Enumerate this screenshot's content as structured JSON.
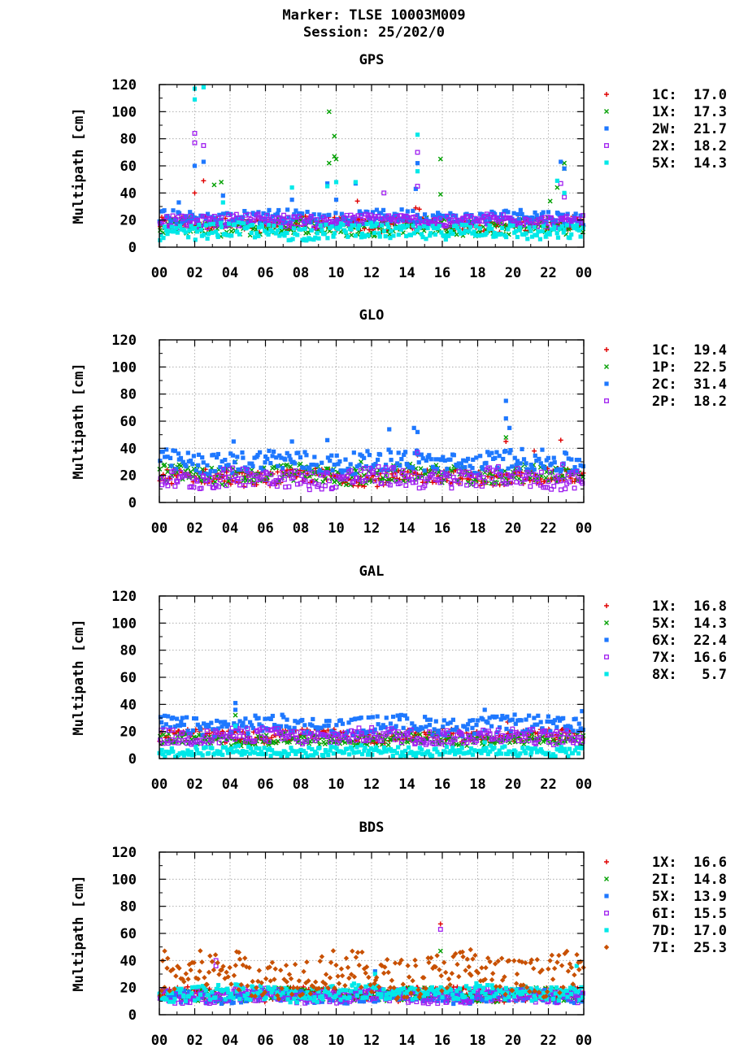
{
  "page": {
    "title_line1": "Marker: TLSE 10003M009",
    "title_line2": "Session: 25/202/0"
  },
  "colors": {
    "1C": "#e00000",
    "1X": "#e00000",
    "1P": "#00a000",
    "2X_gps_green": "#00a000",
    "red": "#e00000",
    "green": "#00a000",
    "blue": "#1e78ff",
    "purple": "#a020f0",
    "cyan": "#00e8e8",
    "brown": "#c85000"
  },
  "chart_data": [
    {
      "type": "scatter",
      "title": "GPS",
      "ylabel": "Multipath [cm]",
      "xlabel": "",
      "xlim": [
        0,
        24
      ],
      "ylim": [
        0,
        120
      ],
      "x_ticks": [
        "00",
        "02",
        "04",
        "06",
        "08",
        "10",
        "12",
        "14",
        "16",
        "18",
        "20",
        "22",
        "00"
      ],
      "y_ticks": [
        "0",
        "20",
        "40",
        "60",
        "80",
        "100",
        "120"
      ],
      "grid": true,
      "legend_position": "right",
      "series": [
        {
          "name": "1C",
          "rms": "17.0",
          "color": "#e00000",
          "marker": "plus",
          "band": [
            12,
            22
          ],
          "spikes": [
            [
              2.0,
              40
            ],
            [
              2.5,
              49
            ],
            [
              11.2,
              34
            ],
            [
              14.5,
              29
            ],
            [
              14.7,
              28
            ]
          ]
        },
        {
          "name": "1X",
          "rms": "17.3",
          "color": "#00a000",
          "marker": "cross",
          "band": [
            9,
            21
          ],
          "spikes": [
            [
              3.1,
              46
            ],
            [
              3.5,
              48
            ],
            [
              9.6,
              100
            ],
            [
              9.6,
              62
            ],
            [
              9.9,
              82
            ],
            [
              9.9,
              67
            ],
            [
              10.0,
              65
            ],
            [
              15.9,
              65
            ],
            [
              15.9,
              39
            ],
            [
              22.1,
              34
            ],
            [
              22.5,
              44
            ],
            [
              22.9,
              62
            ],
            [
              22.9,
              58
            ]
          ]
        },
        {
          "name": "2W",
          "rms": "21.7",
          "color": "#1e78ff",
          "marker": "square",
          "band": [
            17,
            27
          ],
          "spikes": [
            [
              1.1,
              33
            ],
            [
              2.0,
              60
            ],
            [
              2.5,
              63
            ],
            [
              3.6,
              38
            ],
            [
              7.5,
              35
            ],
            [
              9.5,
              47
            ],
            [
              10.0,
              35
            ],
            [
              11.1,
              47
            ],
            [
              14.5,
              43
            ],
            [
              14.6,
              62
            ],
            [
              22.7,
              63
            ],
            [
              22.9,
              58
            ]
          ]
        },
        {
          "name": "2X",
          "rms": "18.2",
          "color": "#a020f0",
          "marker": "opensquare",
          "band": [
            15,
            24
          ],
          "spikes": [
            [
              2.0,
              84
            ],
            [
              2.0,
              77
            ],
            [
              2.5,
              75
            ],
            [
              12.7,
              40
            ],
            [
              14.6,
              70
            ],
            [
              14.6,
              45
            ],
            [
              22.7,
              47
            ],
            [
              22.9,
              37
            ]
          ]
        },
        {
          "name": "5X",
          "rms": "14.3",
          "color": "#00e8e8",
          "marker": "square",
          "band": [
            6,
            17
          ],
          "spikes": [
            [
              2.0,
              117
            ],
            [
              2.0,
              109
            ],
            [
              2.5,
              118
            ],
            [
              3.6,
              33
            ],
            [
              7.5,
              44
            ],
            [
              9.5,
              45
            ],
            [
              10.0,
              48
            ],
            [
              11.1,
              48
            ],
            [
              14.6,
              83
            ],
            [
              14.6,
              56
            ],
            [
              22.5,
              49
            ],
            [
              22.9,
              40
            ]
          ]
        }
      ]
    },
    {
      "type": "scatter",
      "title": "GLO",
      "ylabel": "Multipath [cm]",
      "xlabel": "",
      "xlim": [
        0,
        24
      ],
      "ylim": [
        0,
        120
      ],
      "x_ticks": [
        "00",
        "02",
        "04",
        "06",
        "08",
        "10",
        "12",
        "14",
        "16",
        "18",
        "20",
        "22",
        "00"
      ],
      "y_ticks": [
        "0",
        "20",
        "40",
        "60",
        "80",
        "100",
        "120"
      ],
      "grid": true,
      "legend_position": "right",
      "series": [
        {
          "name": "1C",
          "rms": "19.4",
          "color": "#e00000",
          "marker": "plus",
          "band": [
            13,
            24
          ],
          "spikes": [
            [
              19.6,
              45
            ],
            [
              21.2,
              38
            ],
            [
              22.7,
              46
            ],
            [
              14.6,
              35
            ]
          ]
        },
        {
          "name": "1P",
          "rms": "22.5",
          "color": "#00a000",
          "marker": "cross",
          "band": [
            14,
            27
          ],
          "spikes": [
            [
              19.6,
              48
            ],
            [
              4.3,
              30
            ],
            [
              11.4,
              30
            ]
          ]
        },
        {
          "name": "2C",
          "rms": "31.4",
          "color": "#1e78ff",
          "marker": "square",
          "band": [
            22,
            38
          ],
          "spikes": [
            [
              4.2,
              45
            ],
            [
              7.5,
              45
            ],
            [
              9.5,
              46
            ],
            [
              13.0,
              54
            ],
            [
              14.4,
              55
            ],
            [
              14.6,
              52
            ],
            [
              19.6,
              75
            ],
            [
              19.6,
              62
            ],
            [
              19.8,
              55
            ]
          ]
        },
        {
          "name": "2P",
          "rms": "18.2",
          "color": "#a020f0",
          "marker": "opensquare",
          "band": [
            11,
            25
          ],
          "spikes": [
            [
              14.6,
              37
            ],
            [
              22.8,
              28
            ]
          ]
        }
      ]
    },
    {
      "type": "scatter",
      "title": "GAL",
      "ylabel": "Multipath [cm]",
      "xlabel": "",
      "xlim": [
        0,
        24
      ],
      "ylim": [
        0,
        120
      ],
      "x_ticks": [
        "00",
        "02",
        "04",
        "06",
        "08",
        "10",
        "12",
        "14",
        "16",
        "18",
        "20",
        "22",
        "00"
      ],
      "y_ticks": [
        "0",
        "20",
        "40",
        "60",
        "80",
        "100",
        "120"
      ],
      "grid": true,
      "legend_position": "right",
      "series": [
        {
          "name": "1X",
          "rms": "16.8",
          "color": "#e00000",
          "marker": "plus",
          "band": [
            12,
            21
          ],
          "spikes": [
            [
              19.7,
              27
            ]
          ]
        },
        {
          "name": "5X",
          "rms": "14.3",
          "color": "#00a000",
          "marker": "cross",
          "band": [
            10,
            18
          ],
          "spikes": [
            [
              4.3,
              32
            ]
          ]
        },
        {
          "name": "6X",
          "rms": "22.4",
          "color": "#1e78ff",
          "marker": "square",
          "band": [
            18,
            31
          ],
          "spikes": [
            [
              4.3,
              41
            ],
            [
              4.3,
              36
            ],
            [
              18.4,
              36
            ],
            [
              23.9,
              35
            ]
          ]
        },
        {
          "name": "7X",
          "rms": "16.6",
          "color": "#a020f0",
          "marker": "opensquare",
          "band": [
            11,
            22
          ],
          "spikes": []
        },
        {
          "name": "8X",
          "rms": "5.7",
          "color": "#00e8e8",
          "marker": "square",
          "band": [
            2,
            9
          ],
          "spikes": [
            [
              4.3,
              24
            ],
            [
              18.4,
              12
            ]
          ]
        }
      ]
    },
    {
      "type": "scatter",
      "title": "BDS",
      "ylabel": "Multipath [cm]",
      "xlabel": "",
      "xlim": [
        0,
        24
      ],
      "ylim": [
        0,
        120
      ],
      "x_ticks": [
        "00",
        "02",
        "04",
        "06",
        "08",
        "10",
        "12",
        "14",
        "16",
        "18",
        "20",
        "22",
        "00"
      ],
      "y_ticks": [
        "0",
        "20",
        "40",
        "60",
        "80",
        "100",
        "120"
      ],
      "grid": true,
      "legend_position": "right",
      "series": [
        {
          "name": "1X",
          "rms": "16.6",
          "color": "#e00000",
          "marker": "plus",
          "band": [
            10,
            20
          ],
          "spikes": [
            [
              15.9,
              67
            ]
          ]
        },
        {
          "name": "2I",
          "rms": "14.8",
          "color": "#00a000",
          "marker": "cross",
          "band": [
            10,
            19
          ],
          "spikes": [
            [
              15.9,
              47
            ]
          ]
        },
        {
          "name": "5X",
          "rms": "13.9",
          "color": "#1e78ff",
          "marker": "square",
          "band": [
            9,
            18
          ],
          "spikes": [
            [
              12.2,
              32
            ]
          ]
        },
        {
          "name": "6I",
          "rms": "15.5",
          "color": "#a020f0",
          "marker": "opensquare",
          "band": [
            9,
            19
          ],
          "spikes": [
            [
              3.2,
              40
            ],
            [
              3.2,
              36
            ],
            [
              15.9,
              63
            ]
          ]
        },
        {
          "name": "7D",
          "rms": "17.0",
          "color": "#00e8e8",
          "marker": "square",
          "band": [
            10,
            22
          ],
          "spikes": [
            [
              12.2,
              30
            ],
            [
              23.6,
              36
            ]
          ]
        },
        {
          "name": "7I",
          "rms": "25.3",
          "color": "#c85000",
          "marker": "diamond",
          "band": [
            15,
            45
          ],
          "spikes": [
            [
              0.3,
              47
            ],
            [
              4.5,
              46
            ],
            [
              17.6,
              48
            ]
          ]
        }
      ]
    }
  ]
}
